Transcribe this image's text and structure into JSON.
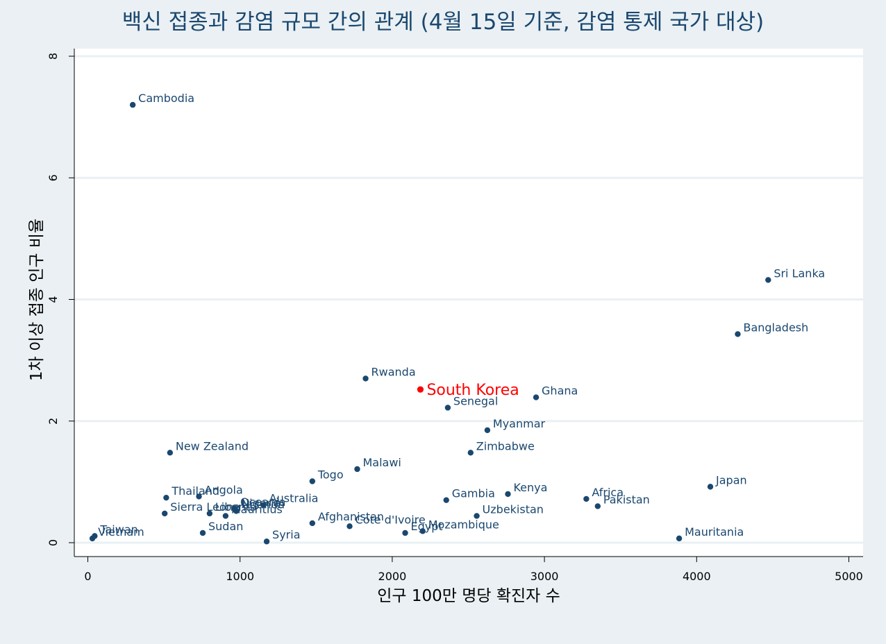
{
  "chart_data": {
    "type": "scatter",
    "title": "백신 접종과 감염 규모 간의 관계 (4월 15일 기준, 감염 통제 국가 대상)",
    "xlabel": "인구 100만 명당 확진자 수",
    "ylabel": "1차 이상 접종 인구 비율",
    "xlim": [
      0,
      5000
    ],
    "ylim": [
      0,
      8
    ],
    "xticks": [
      0,
      1000,
      2000,
      3000,
      4000,
      5000
    ],
    "yticks": [
      0,
      2,
      4,
      6,
      8
    ],
    "grid": "horizontal",
    "colors": {
      "point": "#1a476f",
      "highlight": "#ff0000",
      "grid": "#eaf0f3",
      "background": "#eaf0f3",
      "plot_background": "#ffffff"
    },
    "points": [
      {
        "label": "Cambodia",
        "x": 295,
        "y": 7.2
      },
      {
        "label": "Sri Lanka",
        "x": 4470,
        "y": 4.32
      },
      {
        "label": "Bangladesh",
        "x": 4270,
        "y": 3.43
      },
      {
        "label": "Rwanda",
        "x": 1825,
        "y": 2.7
      },
      {
        "label": "Ghana",
        "x": 2945,
        "y": 2.39
      },
      {
        "label": "Senegal",
        "x": 2365,
        "y": 2.22
      },
      {
        "label": "Myanmar",
        "x": 2625,
        "y": 1.85
      },
      {
        "label": "New Zealand",
        "x": 540,
        "y": 1.48
      },
      {
        "label": "Zimbabwe",
        "x": 2515,
        "y": 1.48
      },
      {
        "label": "Malawi",
        "x": 1770,
        "y": 1.21
      },
      {
        "label": "Togo",
        "x": 1475,
        "y": 1.01
      },
      {
        "label": "Japan",
        "x": 4090,
        "y": 0.92
      },
      {
        "label": "Kenya",
        "x": 2760,
        "y": 0.8
      },
      {
        "label": "Thailand",
        "x": 515,
        "y": 0.74
      },
      {
        "label": "Angola",
        "x": 730,
        "y": 0.76
      },
      {
        "label": "Africa",
        "x": 3275,
        "y": 0.72
      },
      {
        "label": "Gambia",
        "x": 2355,
        "y": 0.7
      },
      {
        "label": "Australia",
        "x": 1155,
        "y": 0.62
      },
      {
        "label": "Oceania",
        "x": 965,
        "y": 0.56
      },
      {
        "label": "Nigeria",
        "x": 970,
        "y": 0.54
      },
      {
        "label": "Uganda",
        "x": 975,
        "y": 0.52
      },
      {
        "label": "Pakistan",
        "x": 3350,
        "y": 0.6
      },
      {
        "label": "Sierra Leone",
        "x": 505,
        "y": 0.48
      },
      {
        "label": "Liberia",
        "x": 800,
        "y": 0.48
      },
      {
        "label": "Mauritius",
        "x": 905,
        "y": 0.44
      },
      {
        "label": "Uzbekistan",
        "x": 2555,
        "y": 0.44
      },
      {
        "label": "Afghanistan",
        "x": 1475,
        "y": 0.32
      },
      {
        "label": "Sudan",
        "x": 755,
        "y": 0.16
      },
      {
        "label": "Cote d'Ivoire",
        "x": 1720,
        "y": 0.27
      },
      {
        "label": "Egypt",
        "x": 2085,
        "y": 0.16
      },
      {
        "label": "Mozambique",
        "x": 2200,
        "y": 0.19
      },
      {
        "label": "Syria",
        "x": 1175,
        "y": 0.02
      },
      {
        "label": "Taiwan",
        "x": 45,
        "y": 0.11
      },
      {
        "label": "Vietnam",
        "x": 30,
        "y": 0.07
      },
      {
        "label": "Mauritania",
        "x": 3885,
        "y": 0.07
      }
    ],
    "highlight": {
      "label": "South Korea",
      "x": 2185,
      "y": 2.52
    }
  }
}
